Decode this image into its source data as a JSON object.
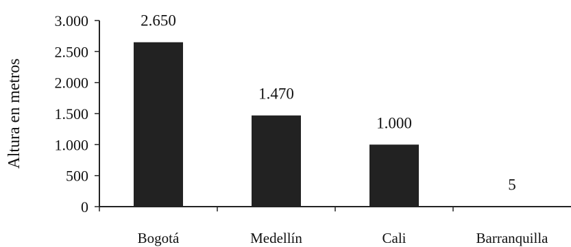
{
  "chart_data": {
    "type": "bar",
    "title": "",
    "xlabel": "",
    "ylabel": "Altura en metros",
    "categories": [
      "Bogotá",
      "Medellín",
      "Cali",
      "Barranquilla"
    ],
    "values": [
      2650,
      1470,
      1000,
      5
    ],
    "data_labels": [
      "2.650",
      "1.470",
      "1.000",
      "5"
    ],
    "ylim": [
      0,
      3000
    ],
    "yticks": [
      0,
      500,
      1000,
      1500,
      2000,
      2500,
      3000
    ],
    "ytick_labels": [
      "0",
      "500",
      "1.000",
      "1.500",
      "2.000",
      "2.500",
      "3.000"
    ],
    "grid": false,
    "legend": "none",
    "bar_color": "#222222"
  }
}
